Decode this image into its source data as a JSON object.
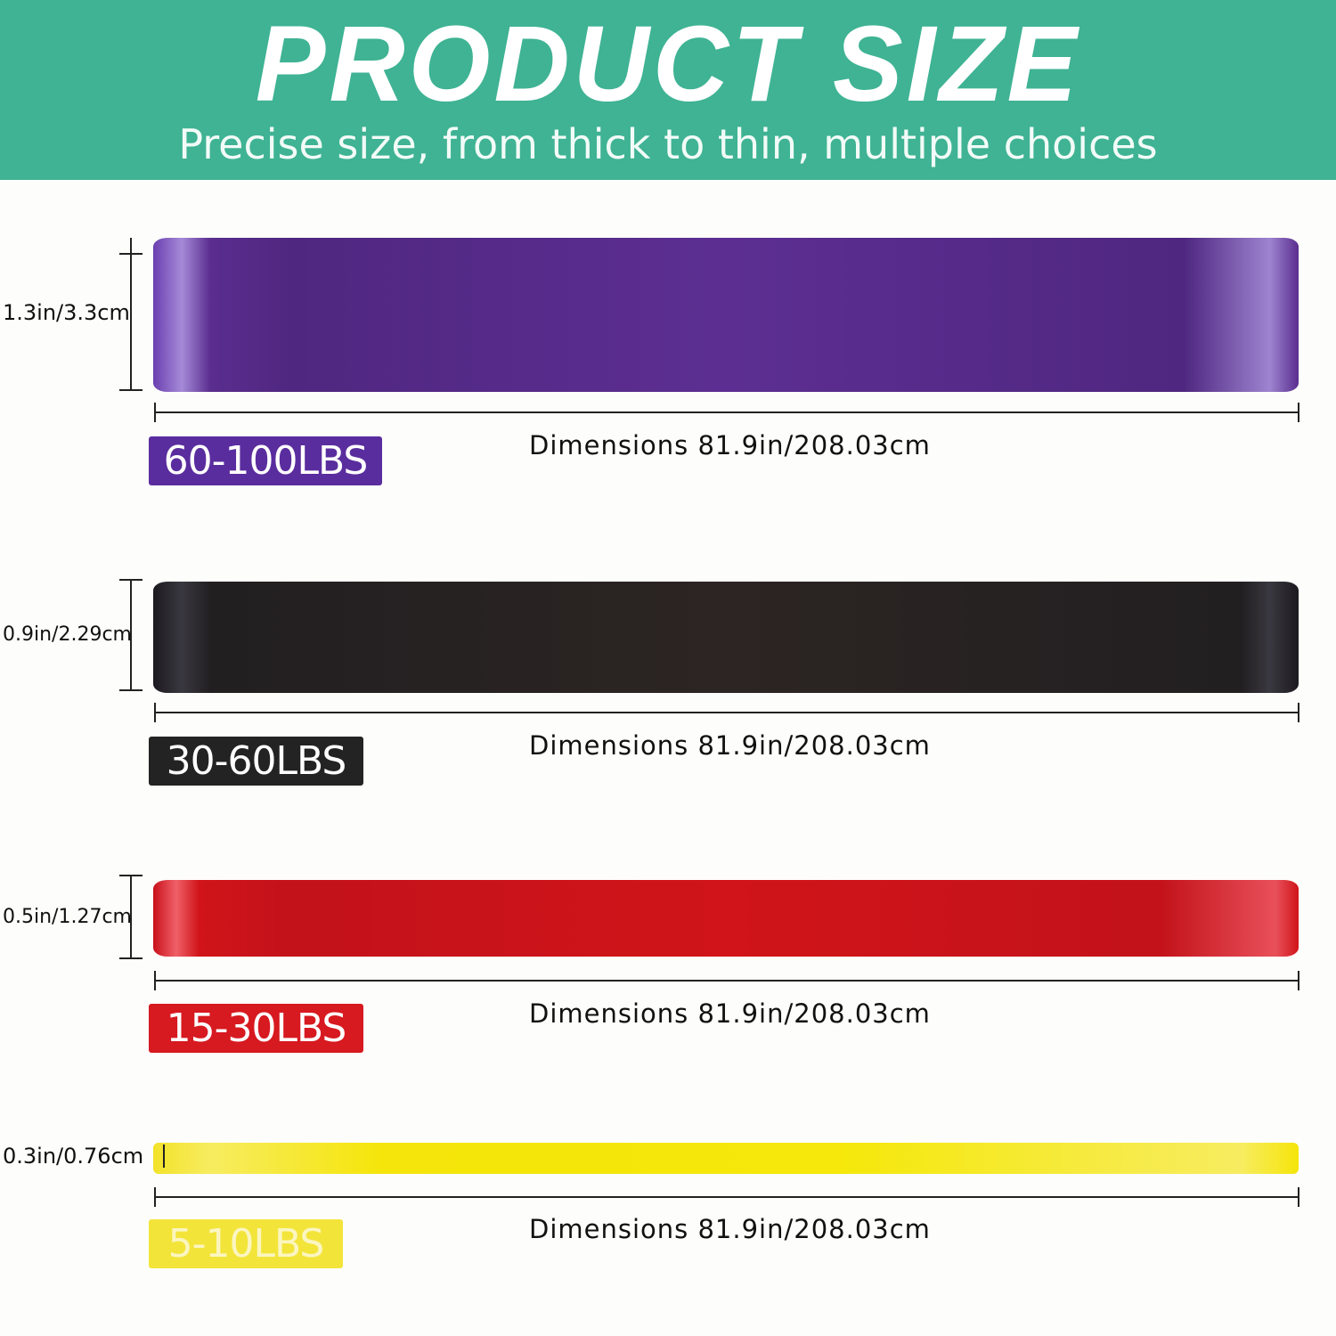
{
  "header": {
    "title": "PRODUCT SIZE",
    "subtitle": "Precise size, from thick to thin, multiple choices",
    "background_color": "#3fb394"
  },
  "bands": [
    {
      "thickness_label": "1.3in/3.3cm",
      "resistance_label": "60-100LBS",
      "dimensions_label": "Dimensions 81.9in/208.03cm",
      "color": "#5a2d8e"
    },
    {
      "thickness_label": "0.9in/2.29cm",
      "resistance_label": "30-60LBS",
      "dimensions_label": "Dimensions 81.9in/208.03cm",
      "color": "#2a2424"
    },
    {
      "thickness_label": "0.5in/1.27cm",
      "resistance_label": "15-30LBS",
      "dimensions_label": "Dimensions 81.9in/208.03cm",
      "color": "#d01419"
    },
    {
      "thickness_label": "0.3in/0.76cm",
      "resistance_label": "5-10LBS",
      "dimensions_label": "Dimensions 81.9in/208.03cm",
      "color": "#f5e50a"
    }
  ]
}
